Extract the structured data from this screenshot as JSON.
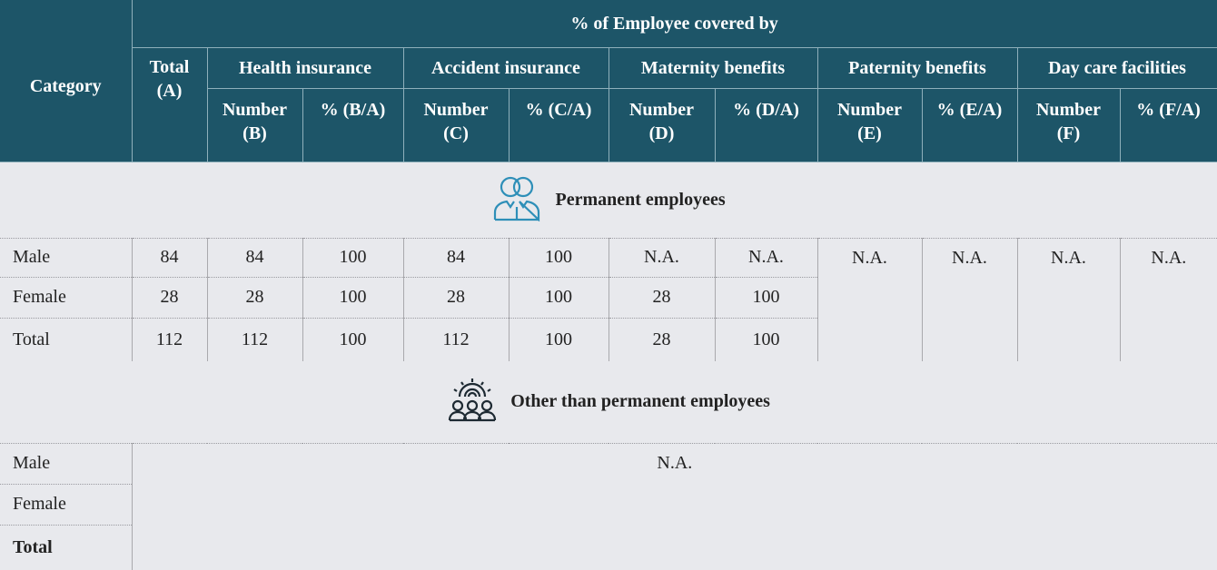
{
  "header": {
    "category": "Category",
    "covered_by": "% of Employee covered by",
    "total": "Total\n(A)",
    "groups": [
      {
        "name": "Health insurance",
        "number": "Number\n(B)",
        "percent": "% (B/A)"
      },
      {
        "name": "Accident insurance",
        "number": "Number\n(C)",
        "percent": "% (C/A)"
      },
      {
        "name": "Maternity benefits",
        "number": "Number\n(D)",
        "percent": "% (D/A)"
      },
      {
        "name": "Paternity benefits",
        "number": "Number\n(E)",
        "percent": "% (E/A)"
      },
      {
        "name": "Day care facilities",
        "number": "Number\n(F)",
        "percent": "% (F/A)"
      }
    ]
  },
  "sections": [
    {
      "title": "Permanent employees",
      "rows": [
        {
          "label": "Male",
          "values": [
            84,
            84,
            100,
            84,
            100,
            "N.A.",
            "N.A."
          ]
        },
        {
          "label": "Female",
          "values": [
            28,
            28,
            100,
            28,
            100,
            28,
            100
          ]
        },
        {
          "label": "Total",
          "values": [
            112,
            112,
            100,
            112,
            100,
            28,
            100
          ]
        }
      ],
      "merged": [
        "N.A.",
        "N.A.",
        "N.A.",
        "N.A."
      ]
    },
    {
      "title": "Other than permanent employees",
      "rows": [
        {
          "label": "Male"
        },
        {
          "label": "Female"
        },
        {
          "label": "Total"
        }
      ],
      "merged": "N.A."
    }
  ]
}
